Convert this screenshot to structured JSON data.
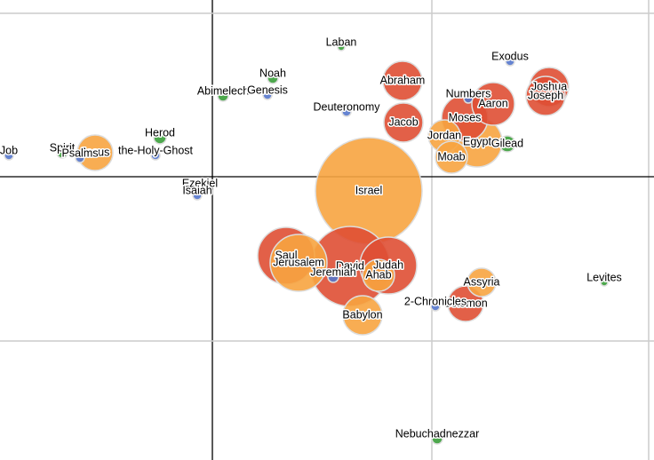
{
  "chart_data": {
    "type": "bubble",
    "labels": [
      "Israel",
      "David",
      "Saul",
      "Jerusalem",
      "Judah",
      "Egypt",
      "Moses",
      "Aaron",
      "Abraham",
      "Jacob",
      "Joshua",
      "Joseph",
      "Babylon",
      "Solomon",
      "Jesus",
      "Ahab",
      "Jordan",
      "Moab",
      "Assyria",
      "Gilead",
      "Herod",
      "Noah",
      "Abimelech",
      "Ezekiel",
      "Jeremiah",
      "Spirit",
      "Nebuchadnezzar",
      "Genesis",
      "Deuteronomy",
      "Numbers",
      "Exodus",
      "2-Chronicles",
      "Psalms",
      "the-Holy-Ghost",
      "Job",
      "Isaiah",
      "Laban",
      "Levites"
    ],
    "x": [
      176,
      155,
      83,
      97,
      198,
      298,
      284,
      316,
      214,
      215,
      379,
      375,
      169,
      285,
      -132,
      187,
      261,
      269,
      303,
      332,
      -59,
      68,
      12,
      -14,
      136,
      -169,
      253,
      62,
      151,
      288,
      335,
      251,
      -149,
      -64,
      -229,
      -17,
      145,
      441
    ],
    "y": [
      -16,
      -101,
      -89,
      -97,
      -100,
      39,
      66,
      82,
      108,
      61,
      101,
      91,
      -156,
      -143,
      27,
      -111,
      46,
      22,
      -119,
      37,
      44,
      111,
      91,
      -13,
      -113,
      27,
      -295,
      92,
      73,
      88,
      130,
      -146,
      21,
      24,
      24,
      -21,
      146,
      -119
    ],
    "sizes": [
      60,
      45,
      32,
      32,
      32,
      28,
      26,
      24,
      22,
      22,
      22,
      22,
      22,
      20,
      20,
      18,
      18,
      18,
      16,
      9,
      7,
      6,
      6,
      6,
      6,
      6,
      6,
      5,
      5,
      5,
      5,
      5,
      5,
      5,
      5,
      5,
      4,
      4
    ],
    "colors": [
      "#f7a440",
      "#df4f34",
      "#df4f34",
      "#f7a440",
      "#df4f34",
      "#f7a440",
      "#df4f34",
      "#df4f34",
      "#df4f34",
      "#df4f34",
      "#df4f34",
      "#df4f34",
      "#f7a440",
      "#df4f34",
      "#f7a440",
      "#f7a440",
      "#f7a440",
      "#f7a440",
      "#f7a440",
      "#3a9e3a",
      "#3a9e3a",
      "#3a9e3a",
      "#3a9e3a",
      "#3a9e3a",
      "#5577cc",
      "#3a9e3a",
      "#3a9e3a",
      "#5577cc",
      "#5577cc",
      "#5577cc",
      "#5577cc",
      "#5577cc",
      "#5577cc",
      "#5577cc",
      "#5577cc",
      "#5577cc",
      "#3a9e3a",
      "#3a9e3a"
    ],
    "xlim": [
      -239,
      497
    ],
    "ylim": [
      -319,
      199
    ],
    "xticks": [
      0,
      247,
      491
    ],
    "yticks": [
      184,
      0,
      -185
    ],
    "grid": true
  }
}
